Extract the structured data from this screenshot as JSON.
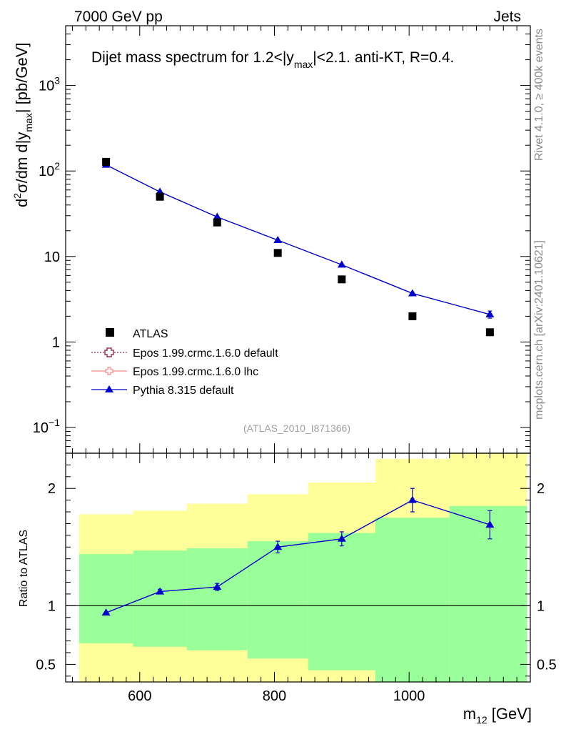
{
  "header": {
    "energy_label": "7000 GeV pp",
    "process_label": "Jets",
    "side_label_top": "Rivet 4.1.0, ≥ 400k events",
    "side_label_bottom": "mcplots.cern.ch [arXiv:2401.10621]",
    "analysis_id": "(ATLAS_2010_I871366)"
  },
  "colors": {
    "data_marker": "#000000",
    "pythia": "#0000cc",
    "epos_default": "#993355",
    "epos_lhc": "#ff8888",
    "band_inner": "#99ff99",
    "band_outer": "#ffff99"
  },
  "chart_data": [
    {
      "type": "scatter",
      "panel": "main",
      "title_parts": {
        "prefix": "Dijet mass spectrum for 1.2<|y",
        "sub": "max",
        "suffix": "|<2.1.  anti-KT, R=0.4."
      },
      "ylabel_parts": {
        "a": "d",
        "b": "2",
        "c": "σ/dm d|y",
        "d": "max",
        "e": "| [pb/GeV]"
      },
      "yscale": "log",
      "ylim": [
        0.05,
        5000
      ],
      "xlim": [
        490,
        1180
      ],
      "ytick_labels": [
        {
          "value": 0.1,
          "base": "10",
          "exp": "−1"
        },
        {
          "value": 1,
          "base": "1",
          "exp": ""
        },
        {
          "value": 10,
          "base": "10",
          "exp": ""
        },
        {
          "value": 100,
          "base": "10",
          "exp": "2"
        },
        {
          "value": 1000,
          "base": "10",
          "exp": "3"
        }
      ],
      "legend": {
        "placement": "lower-left",
        "entries": [
          {
            "label": "ATLAS",
            "style": "square"
          },
          {
            "label": "Epos 1.99.crmc.1.6.0 default",
            "style": "dotted-cross"
          },
          {
            "label": "Epos 1.99.crmc.1.6.0 lhc",
            "style": "solid-cross"
          },
          {
            "label": "Pythia 8.315 default",
            "style": "triangle"
          }
        ]
      },
      "series": [
        {
          "name": "ATLAS",
          "x": [
            550,
            630,
            715,
            805,
            900,
            1005,
            1120
          ],
          "y": [
            128,
            50,
            25,
            11,
            5.4,
            2.0,
            1.3
          ]
        },
        {
          "name": "Pythia 8.315 default",
          "x": [
            550,
            630,
            715,
            805,
            900,
            1005,
            1120
          ],
          "y": [
            118,
            57,
            29,
            15.5,
            8.0,
            3.7,
            2.1
          ],
          "yerr": [
            0,
            0,
            0,
            0,
            0,
            0,
            0.2
          ]
        }
      ]
    },
    {
      "type": "ratio",
      "panel": "ratio",
      "ylabel": "Ratio to ATLAS",
      "xlabel_parts": {
        "a": "m",
        "b": "12",
        "c": " [GeV]"
      },
      "ylim": [
        0.35,
        2.3
      ],
      "xlim": [
        490,
        1180
      ],
      "xtick_labels": [
        {
          "value": 600,
          "label": "600"
        },
        {
          "value": 800,
          "label": "800"
        },
        {
          "value": 1000,
          "label": "1000"
        }
      ],
      "ytick_labels": [
        {
          "value": 0.5,
          "label": "0.5"
        },
        {
          "value": 1,
          "label": "1"
        },
        {
          "value": 2,
          "label": "2"
        }
      ],
      "bands": [
        {
          "lo": 510,
          "hi": 590,
          "in_lo": 0.68,
          "in_hi": 1.44,
          "out_lo": 0.3,
          "out_hi": 1.78
        },
        {
          "lo": 590,
          "hi": 670,
          "in_lo": 0.65,
          "in_hi": 1.47,
          "out_lo": 0.3,
          "out_hi": 1.81
        },
        {
          "lo": 670,
          "hi": 760,
          "in_lo": 0.62,
          "in_hi": 1.49,
          "out_lo": 0.3,
          "out_hi": 1.87
        },
        {
          "lo": 760,
          "hi": 850,
          "in_lo": 0.55,
          "in_hi": 1.55,
          "out_lo": 0.3,
          "out_hi": 1.95
        },
        {
          "lo": 850,
          "hi": 950,
          "in_lo": 0.45,
          "in_hi": 1.62,
          "out_lo": 0.3,
          "out_hi": 2.05
        },
        {
          "lo": 950,
          "hi": 1060,
          "in_lo": 0.3,
          "in_hi": 1.75,
          "out_lo": 0.3,
          "out_hi": 2.25
        },
        {
          "lo": 1060,
          "hi": 1175,
          "in_lo": 0.3,
          "in_hi": 1.85,
          "out_lo": 0.3,
          "out_hi": 2.3
        }
      ],
      "series": [
        {
          "name": "Pythia 8.315 default",
          "x": [
            550,
            630,
            715,
            805,
            900,
            1005,
            1120
          ],
          "y": [
            0.94,
            1.12,
            1.16,
            1.5,
            1.57,
            1.9,
            1.69
          ],
          "yerr": [
            0,
            0.02,
            0.03,
            0.05,
            0.06,
            0.1,
            0.12
          ]
        }
      ]
    }
  ]
}
